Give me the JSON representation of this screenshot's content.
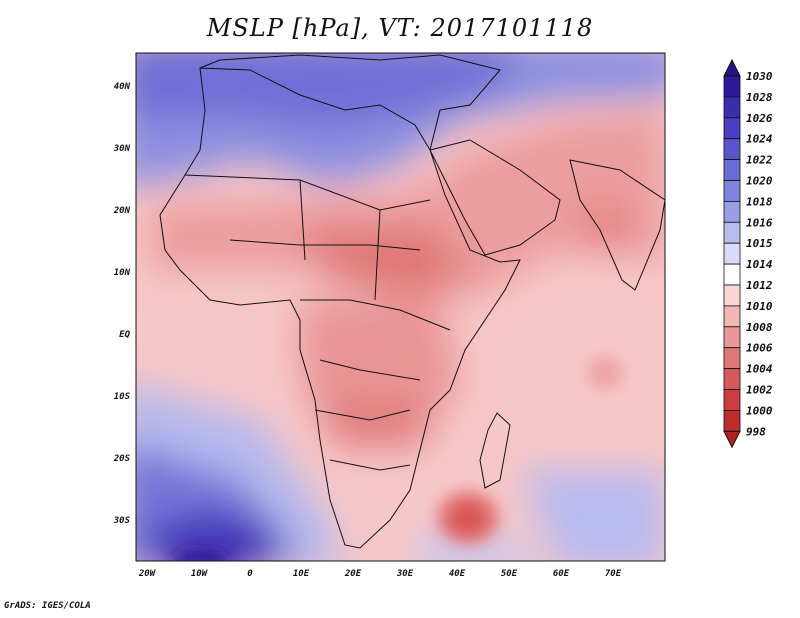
{
  "title": "MSLP [hPa], VT: 2017101118",
  "credit": "GrADS: IGES/COLA",
  "map": {
    "lat_labels": [
      "40N",
      "30N",
      "20N",
      "10N",
      "EQ",
      "10S",
      "20S",
      "30S"
    ],
    "lon_labels": [
      "20W",
      "10W",
      "0",
      "10E",
      "20E",
      "30E",
      "40E",
      "50E",
      "60E",
      "70E"
    ]
  },
  "colorbar": {
    "unit": "hPa",
    "levels": [
      1030,
      1028,
      1026,
      1024,
      1022,
      1020,
      1018,
      1016,
      1015,
      1014,
      1012,
      1010,
      1008,
      1006,
      1004,
      1002,
      1000,
      998
    ],
    "colors": [
      "#2c1a9a",
      "#3a2db0",
      "#4a3fc2",
      "#5a55cd",
      "#6b6bd6",
      "#7f82de",
      "#9a9ee6",
      "#b9bbef",
      "#d9daf7",
      "#ffffff",
      "#f9d6d6",
      "#f3b6b6",
      "#eb9797",
      "#e07777",
      "#d65858",
      "#cc3c3c",
      "#bf2a2a"
    ],
    "top_arrow_color": "#241489",
    "bottom_arrow_color": "#b02222"
  }
}
